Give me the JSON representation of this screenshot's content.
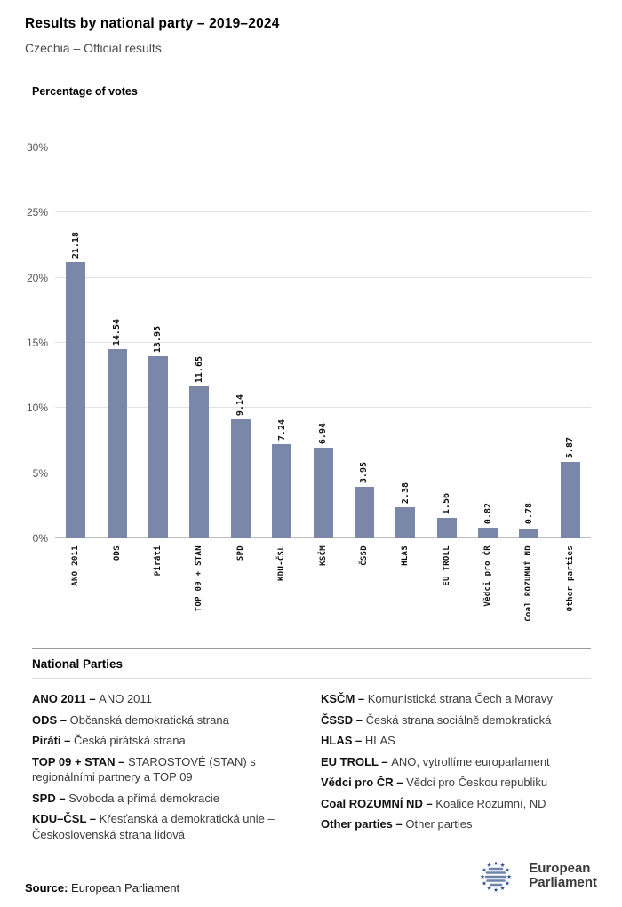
{
  "header": {
    "title": "Results by national party – 2019–2024",
    "subtitle": "Czechia – Official results"
  },
  "chart_data": {
    "type": "bar",
    "title": "Percentage of votes",
    "categories": [
      "ANO 2011",
      "ODS",
      "Piráti",
      "TOP 09 + STAN",
      "SPD",
      "KDU-ČSL",
      "KSČM",
      "ČSSD",
      "HLAS",
      "EU TROLL",
      "Vědci pro ČR",
      "Coal ROZUMNÍ ND",
      "Other parties"
    ],
    "values": [
      21.18,
      14.54,
      13.95,
      11.65,
      9.14,
      7.24,
      6.94,
      3.95,
      2.38,
      1.56,
      0.82,
      0.78,
      5.87
    ],
    "value_labels": [
      "21.18",
      "14.54",
      "13.95",
      "11.65",
      "9.14",
      "7.24",
      "6.94",
      "3.95",
      "2.38",
      "1.56",
      "0.82",
      "0.78",
      "5.87"
    ],
    "ylim": [
      0,
      30
    ],
    "yticks": [
      {
        "value": 0,
        "label": "0%"
      },
      {
        "value": 5,
        "label": "5%"
      },
      {
        "value": 10,
        "label": "10%"
      },
      {
        "value": 15,
        "label": "15%"
      },
      {
        "value": 20,
        "label": "20%"
      },
      {
        "value": 25,
        "label": "25%"
      },
      {
        "value": 30,
        "label": "30%"
      }
    ],
    "grid": true,
    "legend_position": "none"
  },
  "colors": {
    "bar": "#7b87a8",
    "grid": "#e2e2e2",
    "logo_star_blue": "#2c4d8f",
    "logo_stripe_blue": "#6d84ad"
  },
  "legend": {
    "heading": "National Parties",
    "columns": [
      [
        {
          "abbr": "ANO 2011 –",
          "desc": "ANO 2011"
        },
        {
          "abbr": "ODS –",
          "desc": "Občanská demokratická strana"
        },
        {
          "abbr": "Piráti –",
          "desc": "Česká pirátská strana"
        },
        {
          "abbr": "TOP 09 + STAN –",
          "desc": "STAROSTOVÉ (STAN) s regionálními partnery a TOP 09"
        },
        {
          "abbr": "SPD –",
          "desc": "Svoboda a přímá demokracie"
        },
        {
          "abbr": "KDU–ČSL –",
          "desc": "Křesťanská a demokratická unie – Československá strana lidová"
        }
      ],
      [
        {
          "abbr": "KSČM –",
          "desc": "Komunistická strana Čech a Moravy"
        },
        {
          "abbr": "ČSSD –",
          "desc": "Česká strana sociálně demokratická"
        },
        {
          "abbr": "HLAS –",
          "desc": "HLAS"
        },
        {
          "abbr": "EU TROLL –",
          "desc": "ANO, vytrollíme europarlament"
        },
        {
          "abbr": "Vědci pro ČR –",
          "desc": "Vědci pro Českou republiku"
        },
        {
          "abbr": "Coal ROZUMNÍ ND –",
          "desc": "Koalice Rozumní, ND"
        },
        {
          "abbr": "Other parties –",
          "desc": "Other parties"
        }
      ]
    ]
  },
  "footer": {
    "source_label": "Source:",
    "source_value": "European Parliament",
    "logo": {
      "line1": "European",
      "line2": "Parliament"
    }
  }
}
